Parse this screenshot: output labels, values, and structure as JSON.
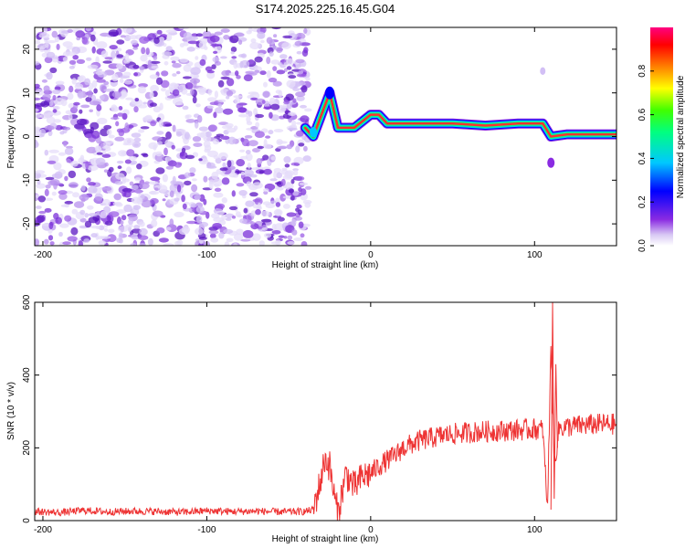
{
  "figure": {
    "title": "S174.2025.225.16.45.G04"
  },
  "chart_data": [
    {
      "type": "heatmap",
      "xlabel": "Height of straight line (km)",
      "ylabel": "Frequency (Hz)",
      "xlim": [
        -205,
        150
      ],
      "ylim": [
        -25,
        25
      ],
      "xticks": [
        -200,
        -100,
        0,
        100
      ],
      "yticks": [
        -20,
        -10,
        0,
        10,
        20
      ],
      "colorbar": {
        "label": "Normalized spectral amplitude",
        "range": [
          0,
          1
        ],
        "ticks": [
          0,
          0.2,
          0.4,
          0.6,
          0.8
        ],
        "colormap": [
          "#ffffff",
          "#8a2be2",
          "#0000ff",
          "#00c8ff",
          "#00ff80",
          "#40ff00",
          "#ffff00",
          "#ff8000",
          "#ff0000",
          "#ff0080"
        ]
      },
      "ridge": [
        {
          "x": -40,
          "y": 2
        },
        {
          "x": -35,
          "y": 0
        },
        {
          "x": -25,
          "y": 10
        },
        {
          "x": -20,
          "y": 2
        },
        {
          "x": -10,
          "y": 2
        },
        {
          "x": 0,
          "y": 5
        },
        {
          "x": 5,
          "y": 5
        },
        {
          "x": 10,
          "y": 3
        },
        {
          "x": 30,
          "y": 3
        },
        {
          "x": 50,
          "y": 3
        },
        {
          "x": 70,
          "y": 2.5
        },
        {
          "x": 90,
          "y": 3
        },
        {
          "x": 105,
          "y": 3
        },
        {
          "x": 110,
          "y": 0
        },
        {
          "x": 120,
          "y": 0.5
        },
        {
          "x": 140,
          "y": 0.5
        },
        {
          "x": 150,
          "y": 0.5
        }
      ],
      "grid": false
    },
    {
      "type": "line",
      "xlabel": "Height of straight line (km)",
      "ylabel": "SNR (10 * v/v)",
      "xlim": [
        -205,
        150
      ],
      "ylim": [
        0,
        600
      ],
      "xticks": [
        -200,
        -100,
        0,
        100
      ],
      "yticks": [
        0,
        200,
        400,
        600
      ],
      "series": [
        {
          "color": "#ee3333",
          "x": [
            -205,
            -190,
            -175,
            -160,
            -145,
            -130,
            -115,
            -100,
            -85,
            -70,
            -55,
            -40,
            -35,
            -30,
            -28,
            -25,
            -22,
            -20,
            -15,
            -10,
            -5,
            0,
            5,
            10,
            15,
            20,
            25,
            30,
            35,
            40,
            45,
            50,
            55,
            60,
            65,
            70,
            75,
            80,
            85,
            90,
            95,
            100,
            105,
            108,
            110,
            112,
            115,
            120,
            125,
            130,
            135,
            140,
            145,
            150
          ],
          "y": [
            25,
            22,
            28,
            24,
            26,
            25,
            23,
            27,
            25,
            26,
            24,
            25,
            30,
            120,
            170,
            150,
            60,
            20,
            130,
            90,
            120,
            130,
            150,
            165,
            180,
            200,
            210,
            220,
            225,
            230,
            235,
            238,
            240,
            242,
            244,
            245,
            246,
            247,
            248,
            249,
            250,
            252,
            250,
            30,
            500,
            150,
            255,
            258,
            260,
            262,
            264,
            265,
            265,
            265
          ]
        }
      ],
      "grid": false
    }
  ]
}
